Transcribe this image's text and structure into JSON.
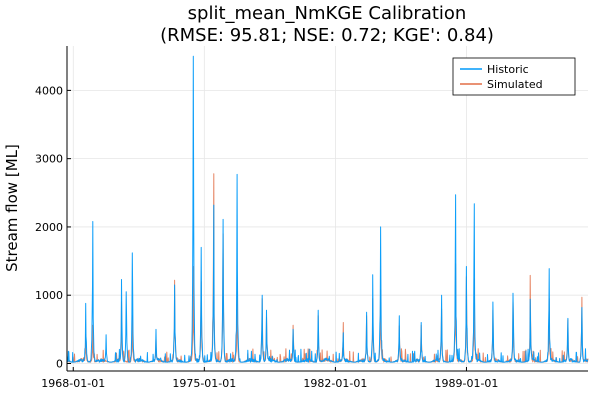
{
  "chart_data": {
    "type": "line",
    "title_line1": "split_mean_NmKGE Calibration",
    "title_line2": "(RMSE: 95.81; NSE: 0.72; KGE': 0.84)",
    "xlabel": "",
    "ylabel": "Stream flow [ML]",
    "x_range": [
      "1967-09-01",
      "1995-06-30"
    ],
    "ylim": [
      -110,
      4650
    ],
    "x_ticks": [
      "1968-01-01",
      "1975-01-01",
      "1982-01-01",
      "1989-01-01"
    ],
    "y_ticks": [
      0,
      1000,
      2000,
      3000,
      4000
    ],
    "grid": true,
    "legend_position": "top-right",
    "series": [
      {
        "name": "Historic",
        "color": "#009AFA",
        "peaks": [
          {
            "date": "1968-09-01",
            "value": 880
          },
          {
            "date": "1969-01-15",
            "value": 2080
          },
          {
            "date": "1969-10-01",
            "value": 420
          },
          {
            "date": "1970-08-01",
            "value": 1230
          },
          {
            "date": "1970-11-01",
            "value": 1050
          },
          {
            "date": "1971-03-01",
            "value": 1620
          },
          {
            "date": "1972-06-01",
            "value": 500
          },
          {
            "date": "1973-06-01",
            "value": 1150
          },
          {
            "date": "1974-06-01",
            "value": 4500
          },
          {
            "date": "1974-11-01",
            "value": 1700
          },
          {
            "date": "1975-07-01",
            "value": 2320
          },
          {
            "date": "1976-01-01",
            "value": 2110
          },
          {
            "date": "1976-10-01",
            "value": 2770
          },
          {
            "date": "1978-02-01",
            "value": 1000
          },
          {
            "date": "1978-05-01",
            "value": 780
          },
          {
            "date": "1979-10-01",
            "value": 500
          },
          {
            "date": "1981-02-01",
            "value": 780
          },
          {
            "date": "1982-06-01",
            "value": 450
          },
          {
            "date": "1983-09-01",
            "value": 750
          },
          {
            "date": "1984-01-01",
            "value": 1300
          },
          {
            "date": "1984-06-01",
            "value": 2000
          },
          {
            "date": "1985-06-01",
            "value": 700
          },
          {
            "date": "1986-08-01",
            "value": 600
          },
          {
            "date": "1987-09-01",
            "value": 1000
          },
          {
            "date": "1988-06-01",
            "value": 2470
          },
          {
            "date": "1989-01-01",
            "value": 1420
          },
          {
            "date": "1989-06-01",
            "value": 2340
          },
          {
            "date": "1990-06-01",
            "value": 900
          },
          {
            "date": "1991-07-01",
            "value": 1030
          },
          {
            "date": "1992-06-01",
            "value": 940
          },
          {
            "date": "1993-06-01",
            "value": 1390
          },
          {
            "date": "1994-06-01",
            "value": 660
          },
          {
            "date": "1995-03-01",
            "value": 820
          }
        ]
      },
      {
        "name": "Simulated",
        "color": "#E26F46",
        "peaks": [
          {
            "date": "1968-09-01",
            "value": 430
          },
          {
            "date": "1969-01-15",
            "value": 560
          },
          {
            "date": "1970-08-01",
            "value": 900
          },
          {
            "date": "1971-03-01",
            "value": 700
          },
          {
            "date": "1972-06-01",
            "value": 350
          },
          {
            "date": "1973-06-01",
            "value": 1220
          },
          {
            "date": "1974-06-01",
            "value": 1420
          },
          {
            "date": "1974-11-01",
            "value": 1200
          },
          {
            "date": "1975-07-01",
            "value": 2780
          },
          {
            "date": "1976-01-01",
            "value": 1900
          },
          {
            "date": "1976-10-01",
            "value": 1050
          },
          {
            "date": "1978-02-01",
            "value": 950
          },
          {
            "date": "1978-05-01",
            "value": 680
          },
          {
            "date": "1979-10-01",
            "value": 560
          },
          {
            "date": "1981-02-01",
            "value": 700
          },
          {
            "date": "1982-06-01",
            "value": 600
          },
          {
            "date": "1983-09-01",
            "value": 700
          },
          {
            "date": "1984-01-01",
            "value": 950
          },
          {
            "date": "1984-06-01",
            "value": 1080
          },
          {
            "date": "1985-06-01",
            "value": 550
          },
          {
            "date": "1986-08-01",
            "value": 560
          },
          {
            "date": "1987-09-01",
            "value": 800
          },
          {
            "date": "1988-06-01",
            "value": 1460
          },
          {
            "date": "1989-01-01",
            "value": 1270
          },
          {
            "date": "1989-06-01",
            "value": 1240
          },
          {
            "date": "1990-06-01",
            "value": 780
          },
          {
            "date": "1991-07-01",
            "value": 900
          },
          {
            "date": "1992-06-01",
            "value": 1290
          },
          {
            "date": "1993-06-01",
            "value": 950
          },
          {
            "date": "1994-06-01",
            "value": 640
          },
          {
            "date": "1995-03-01",
            "value": 970
          }
        ]
      }
    ]
  }
}
